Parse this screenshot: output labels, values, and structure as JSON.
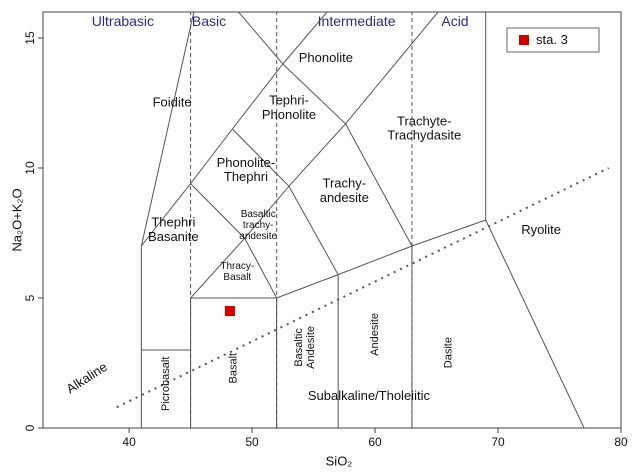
{
  "chart_data": {
    "type": "scatter",
    "x_label": "SiO₂",
    "y_label": "Na₂O+K₂O",
    "xlim": [
      33,
      80
    ],
    "ylim": [
      0,
      16
    ],
    "xticks": [
      40,
      50,
      60,
      70,
      80
    ],
    "yticks": [
      0,
      5,
      10,
      15
    ],
    "legend": "upper right",
    "series": [
      {
        "name": "sta. 3",
        "color": "#d40000",
        "x": [
          48.2
        ],
        "values": [
          4.5
        ]
      }
    ],
    "group_labels": [
      "Ultrabasic",
      "Basic",
      "Intermediate",
      "Acid"
    ],
    "field_labels": [
      [
        "Foidite"
      ],
      [
        "Phonolite"
      ],
      [
        "Tephri-",
        "Phonolite"
      ],
      [
        "Trachyte-",
        "Trachydasite"
      ],
      [
        "Phonolite-",
        "Thephri"
      ],
      [
        "Trachy-",
        "andesite"
      ],
      [
        "Basaltic",
        "trachy-",
        "andesite"
      ],
      [
        "Thephri",
        "Basanite"
      ],
      [
        "Ryolite"
      ],
      [
        "Thracy-",
        "Basalt"
      ],
      [
        "Picrobasalt"
      ],
      [
        "Basalt"
      ],
      [
        "Basaltic",
        "Andesite"
      ],
      [
        "Andesite"
      ],
      [
        "Dasite"
      ],
      [
        "Subalkaline/Tholeiitic"
      ],
      [
        "Alkaline"
      ]
    ]
  }
}
